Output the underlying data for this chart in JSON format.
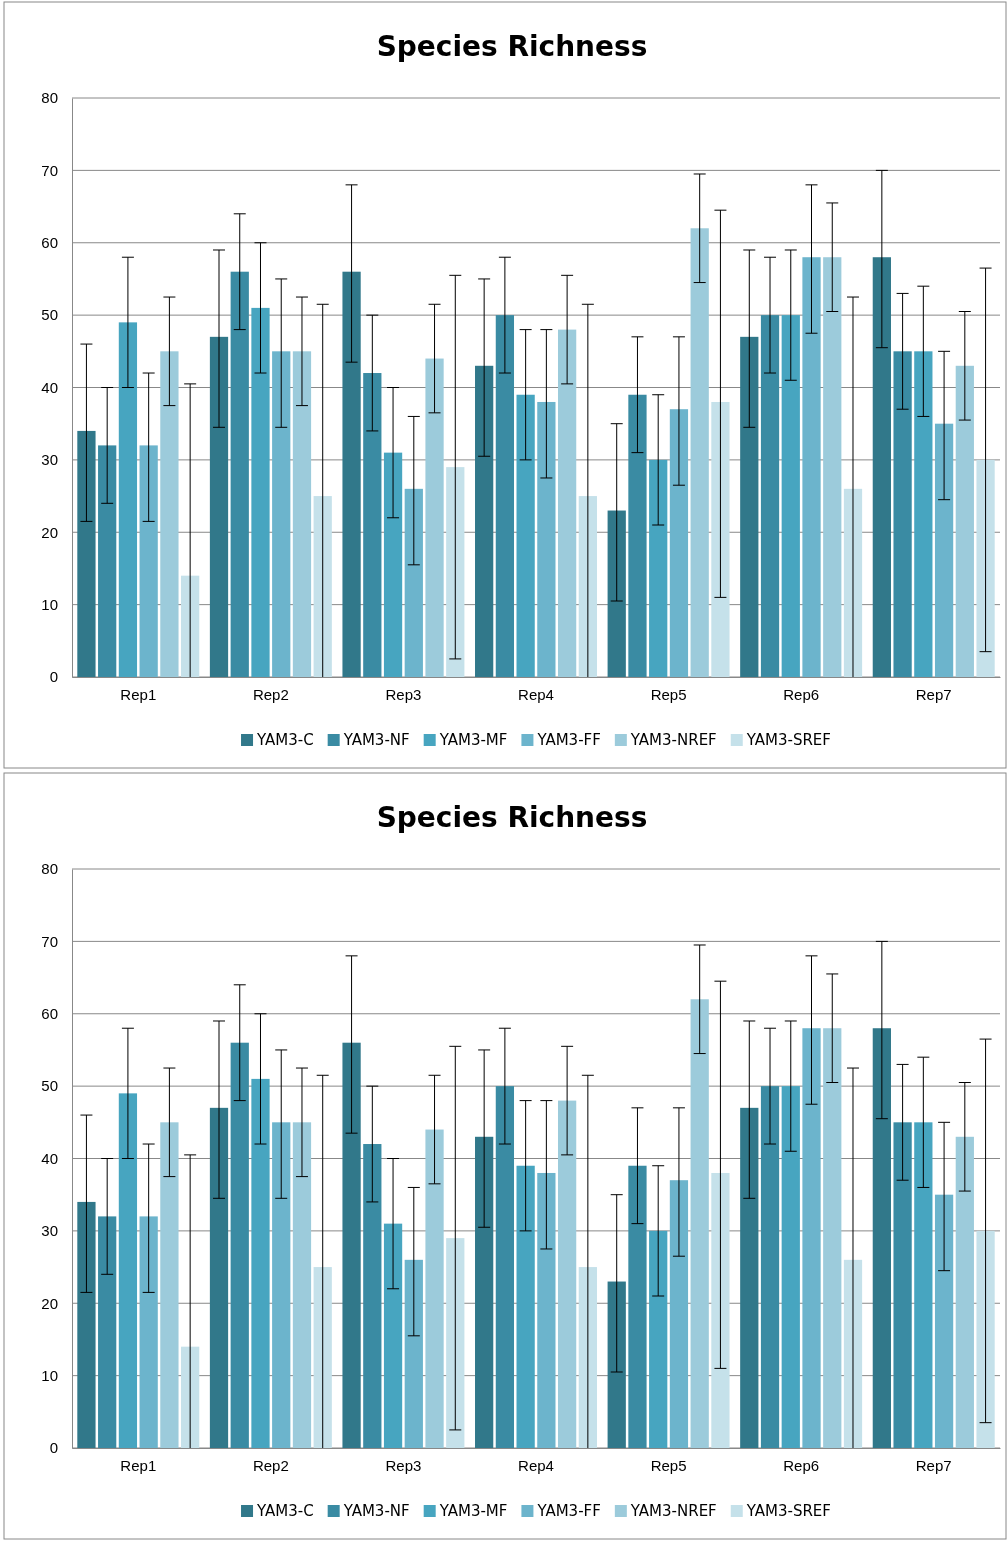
{
  "chart_data": [
    {
      "type": "bar",
      "title": "Species Richness",
      "categories": [
        "Rep1",
        "Rep2",
        "Rep3",
        "Rep4",
        "Rep5",
        "Rep6",
        "Rep7"
      ],
      "ylim": [
        0,
        80
      ],
      "yticks": [
        0,
        10,
        20,
        30,
        40,
        50,
        60,
        70,
        80
      ],
      "grid": "y",
      "legend": "bottom",
      "series": [
        {
          "name": "YAM3-C",
          "color": "#31788a",
          "values": [
            34,
            47,
            56,
            43,
            23,
            47,
            58
          ],
          "errors": [
            [
              21.5,
              46
            ],
            [
              34.5,
              59
            ],
            [
              43.5,
              68
            ],
            [
              30.5,
              55
            ],
            [
              10.5,
              35
            ],
            [
              34.5,
              59
            ],
            [
              45.5,
              70
            ]
          ]
        },
        {
          "name": "YAM3-NF",
          "color": "#3a8ba3",
          "values": [
            32,
            56,
            42,
            50,
            39,
            50,
            45
          ],
          "errors": [
            [
              24,
              40
            ],
            [
              48,
              64
            ],
            [
              34,
              50
            ],
            [
              42,
              58
            ],
            [
              31,
              47
            ],
            [
              42,
              58
            ],
            [
              37,
              53
            ]
          ]
        },
        {
          "name": "YAM3-MF",
          "color": "#47a5c0",
          "values": [
            49,
            51,
            31,
            39,
            30,
            50,
            45
          ],
          "errors": [
            [
              40,
              58
            ],
            [
              42,
              60
            ],
            [
              22,
              40
            ],
            [
              30,
              48
            ],
            [
              21,
              39
            ],
            [
              41,
              59
            ],
            [
              36,
              54
            ]
          ]
        },
        {
          "name": "YAM3-FF",
          "color": "#6cb4cc",
          "values": [
            32,
            45,
            26,
            38,
            37,
            58,
            35
          ],
          "errors": [
            [
              21.5,
              42
            ],
            [
              34.5,
              55
            ],
            [
              15.5,
              36
            ],
            [
              27.5,
              48
            ],
            [
              26.5,
              47
            ],
            [
              47.5,
              68
            ],
            [
              24.5,
              45
            ]
          ]
        },
        {
          "name": "YAM3-NREF",
          "color": "#9ccbdb",
          "values": [
            45,
            45,
            44,
            48,
            62,
            58,
            43
          ],
          "errors": [
            [
              37.5,
              52.5
            ],
            [
              37.5,
              52.5
            ],
            [
              36.5,
              51.5
            ],
            [
              40.5,
              55.5
            ],
            [
              54.5,
              69.5
            ],
            [
              50.5,
              65.5
            ],
            [
              35.5,
              50.5
            ]
          ]
        },
        {
          "name": "YAM3-SREF",
          "color": "#c5e1ea",
          "values": [
            14,
            25,
            29,
            25,
            38,
            26,
            30
          ],
          "errors": [
            [
              0,
              40.5
            ],
            [
              0,
              51.5
            ],
            [
              2.5,
              55.5
            ],
            [
              0,
              51.5
            ],
            [
              11,
              64.5
            ],
            [
              0,
              52.5
            ],
            [
              3.5,
              56.5
            ]
          ]
        }
      ]
    },
    {
      "type": "bar",
      "title": "Species Richness",
      "categories": [
        "Rep1",
        "Rep2",
        "Rep3",
        "Rep4",
        "Rep5",
        "Rep6",
        "Rep7"
      ],
      "ylim": [
        0,
        80
      ],
      "yticks": [
        0,
        10,
        20,
        30,
        40,
        50,
        60,
        70,
        80
      ],
      "grid": "y",
      "legend": "bottom",
      "series": [
        {
          "name": "YAM3-C",
          "color": "#31788a",
          "values": [
            34,
            47,
            56,
            43,
            23,
            47,
            58
          ],
          "errors": [
            [
              21.5,
              46
            ],
            [
              34.5,
              59
            ],
            [
              43.5,
              68
            ],
            [
              30.5,
              55
            ],
            [
              10.5,
              35
            ],
            [
              34.5,
              59
            ],
            [
              45.5,
              70
            ]
          ]
        },
        {
          "name": "YAM3-NF",
          "color": "#3a8ba3",
          "values": [
            32,
            56,
            42,
            50,
            39,
            50,
            45
          ],
          "errors": [
            [
              24,
              40
            ],
            [
              48,
              64
            ],
            [
              34,
              50
            ],
            [
              42,
              58
            ],
            [
              31,
              47
            ],
            [
              42,
              58
            ],
            [
              37,
              53
            ]
          ]
        },
        {
          "name": "YAM3-MF",
          "color": "#47a5c0",
          "values": [
            49,
            51,
            31,
            39,
            30,
            50,
            45
          ],
          "errors": [
            [
              40,
              58
            ],
            [
              42,
              60
            ],
            [
              22,
              40
            ],
            [
              30,
              48
            ],
            [
              21,
              39
            ],
            [
              41,
              59
            ],
            [
              36,
              54
            ]
          ]
        },
        {
          "name": "YAM3-FF",
          "color": "#6cb4cc",
          "values": [
            32,
            45,
            26,
            38,
            37,
            58,
            35
          ],
          "errors": [
            [
              21.5,
              42
            ],
            [
              34.5,
              55
            ],
            [
              15.5,
              36
            ],
            [
              27.5,
              48
            ],
            [
              26.5,
              47
            ],
            [
              47.5,
              68
            ],
            [
              24.5,
              45
            ]
          ]
        },
        {
          "name": "YAM3-NREF",
          "color": "#9ccbdb",
          "values": [
            45,
            45,
            44,
            48,
            62,
            58,
            43
          ],
          "errors": [
            [
              37.5,
              52.5
            ],
            [
              37.5,
              52.5
            ],
            [
              36.5,
              51.5
            ],
            [
              40.5,
              55.5
            ],
            [
              54.5,
              69.5
            ],
            [
              50.5,
              65.5
            ],
            [
              35.5,
              50.5
            ]
          ]
        },
        {
          "name": "YAM3-SREF",
          "color": "#c5e1ea",
          "values": [
            14,
            25,
            29,
            25,
            38,
            26,
            30
          ],
          "errors": [
            [
              0,
              40.5
            ],
            [
              0,
              51.5
            ],
            [
              2.5,
              55.5
            ],
            [
              0,
              51.5
            ],
            [
              11,
              64.5
            ],
            [
              0,
              52.5
            ],
            [
              3.5,
              56.5
            ]
          ]
        }
      ]
    }
  ]
}
